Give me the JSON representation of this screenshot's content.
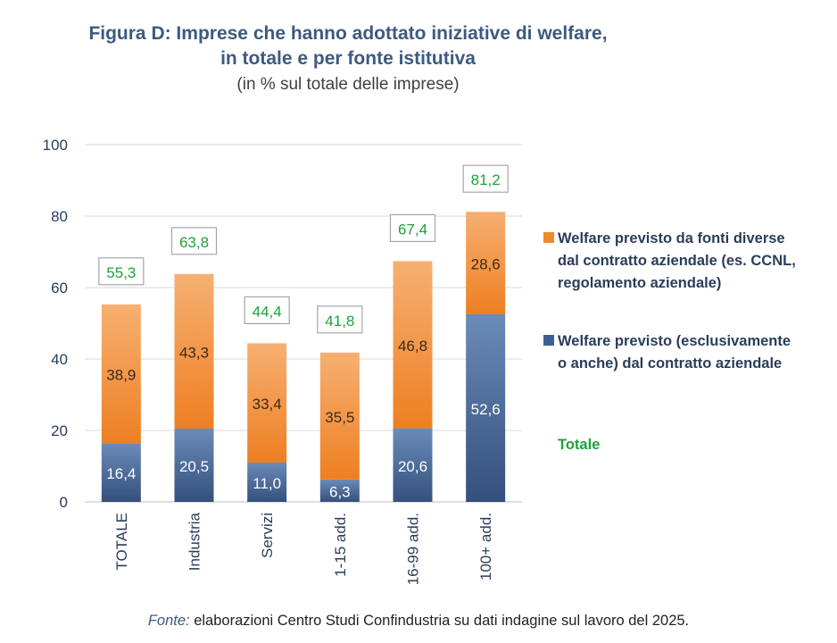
{
  "chart_data": {
    "type": "bar",
    "stacked": true,
    "title_line1": "Figura D: Imprese che hanno adottato iniziative di welfare,",
    "title_line2": "in totale e per fonte istitutiva",
    "subtitle": "(in % sul totale delle imprese)",
    "categories": [
      "TOTALE",
      "Industria",
      "Servizi",
      "1-15 add.",
      "16-99 add.",
      "100+ add."
    ],
    "series": [
      {
        "name": "Welfare previsto (esclusivamente o anche) dal contratto aziendale",
        "legend_lines": [
          "Welfare previsto (esclusivamente",
          "o anche) dal contratto aziendale"
        ],
        "color": "#3d5f93",
        "values": [
          16.4,
          20.5,
          11.0,
          6.3,
          20.6,
          52.6
        ],
        "labels": [
          "16,4",
          "20,5",
          "11,0",
          "6,3",
          "20,6",
          "52,6"
        ]
      },
      {
        "name": "Welfare previsto da fonti diverse dal contratto aziendale (es. CCNL, regolamento aziendale)",
        "legend_lines": [
          "Welfare previsto da fonti diverse",
          "dal contratto aziendale (es. CCNL,",
          "regolamento aziendale)"
        ],
        "color": "#f0882c",
        "values": [
          38.9,
          43.3,
          33.4,
          35.5,
          46.8,
          28.6
        ],
        "labels": [
          "38,9",
          "43,3",
          "33,4",
          "35,5",
          "46,8",
          "28,6"
        ]
      }
    ],
    "totals": {
      "name": "Totale",
      "color": "#1ea23a",
      "values": [
        55.3,
        63.8,
        44.4,
        41.8,
        67.4,
        81.2
      ],
      "labels": [
        "55,3",
        "63,8",
        "44,4",
        "41,8",
        "67,4",
        "81,2"
      ]
    },
    "ylim": [
      0,
      100
    ],
    "yticks": [
      0,
      20,
      40,
      60,
      80,
      100
    ],
    "grid": true,
    "legend_position": "right"
  },
  "footer": {
    "source_label": "Fonte:",
    "source_text": " elaborazioni Centro Studi Confindustria su dati indagine sul lavoro del 2025."
  }
}
